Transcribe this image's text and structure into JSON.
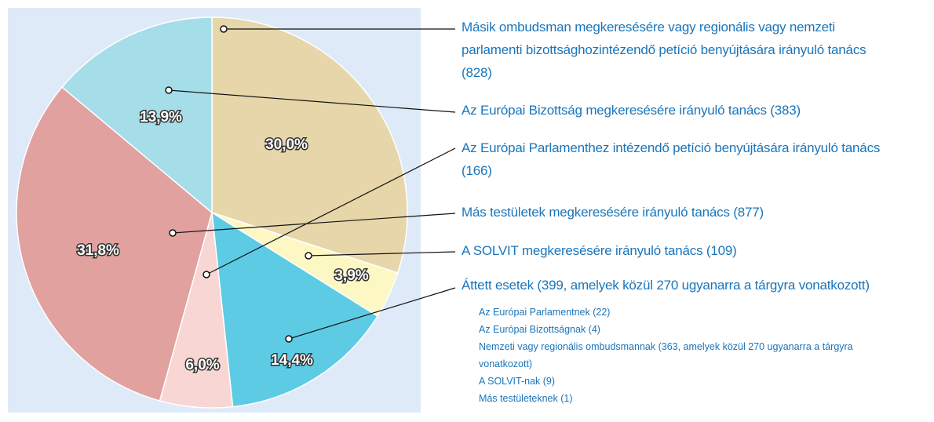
{
  "chart_data": {
    "type": "pie",
    "categories": [
      "Másik ombudsman megkeresésére vagy regionális vagy nemzeti\nparlamenti bizottsághozintézendő petíció benyújtására irányuló tanács\n(828)",
      "A SOLVIT megkeresésére irányuló tanács (109)",
      "Áttett esetek (399, amelyek közül 270 ugyanarra a tárgyra vonatkozott)",
      "Az Európai Parlamenthez intézendő petíció benyújtására irányuló tanács\n(166)",
      "Más testületek megkeresésére irányuló tanács (877)",
      "Az Európai Bizottság megkeresésére irányuló tanács (383)"
    ],
    "values": [
      30.0,
      3.9,
      14.4,
      6.0,
      31.8,
      13.9
    ],
    "value_labels": [
      "30,0%",
      "3,9%",
      "14,4%",
      "6,0%",
      "31,8%",
      "13,9%"
    ],
    "colors": [
      "#e6d6a9",
      "#fdf7c4",
      "#5ecbe4",
      "#f8d6d3",
      "#e0a19f",
      "#a5dde9"
    ],
    "sub_items": [
      "Az Európai Parlamentnek (22)",
      "Az Európai Bizottságnak (4)",
      "Nemzeti vagy regionális ombudsmannak (363, amelyek közül 270 ugyanarra a tárgyra\nvonatkozott)",
      "A SOLVIT-nak (9)",
      "Más testületeknek (1)"
    ]
  }
}
